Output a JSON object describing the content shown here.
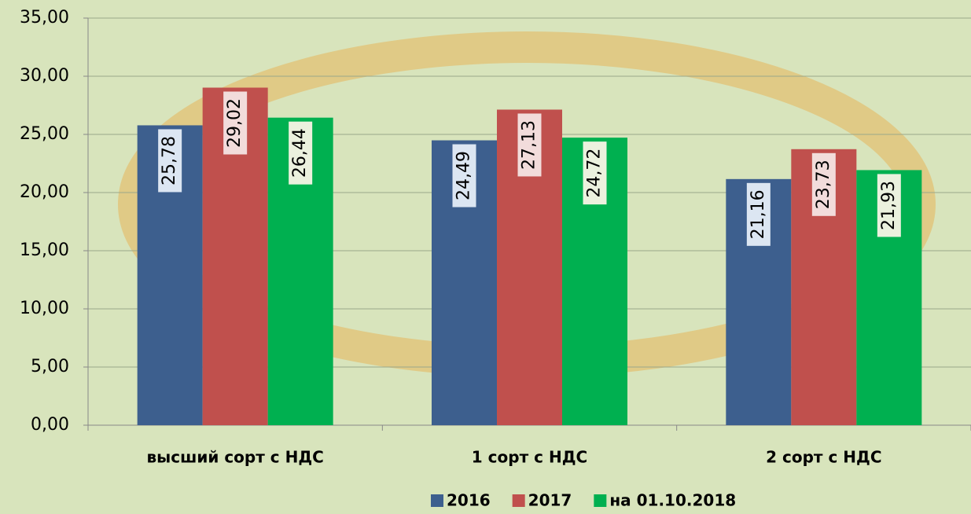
{
  "chart_data": {
    "type": "bar",
    "categories": [
      "высший сорт с НДС",
      "1 сорт с НДС",
      "2 сорт с НДС"
    ],
    "series": [
      {
        "name": "2016",
        "color": "#3d5f8e",
        "values": [
          25.78,
          24.49,
          21.16
        ],
        "value_labels": [
          "25,78",
          "24,49",
          "21,16"
        ]
      },
      {
        "name": "2017",
        "color": "#c0504d",
        "values": [
          29.02,
          27.13,
          23.73
        ],
        "value_labels": [
          "29,02",
          "27,13",
          "23,73"
        ]
      },
      {
        "name": "на 01.10.2018",
        "color": "#00b050",
        "values": [
          26.44,
          24.72,
          21.93
        ],
        "value_labels": [
          "26,44",
          "24,72",
          "21,93"
        ]
      }
    ],
    "ylim": [
      0,
      35
    ],
    "yticks": [
      {
        "value": 0,
        "label": "0,00"
      },
      {
        "value": 5,
        "label": "5,00"
      },
      {
        "value": 10,
        "label": "10,00"
      },
      {
        "value": 15,
        "label": "15,00"
      },
      {
        "value": 20,
        "label": "20,00"
      },
      {
        "value": 25,
        "label": "25,00"
      },
      {
        "value": 30,
        "label": "30,00"
      },
      {
        "value": 35,
        "label": "35,00"
      }
    ],
    "grid": true,
    "legend": "bottom"
  }
}
